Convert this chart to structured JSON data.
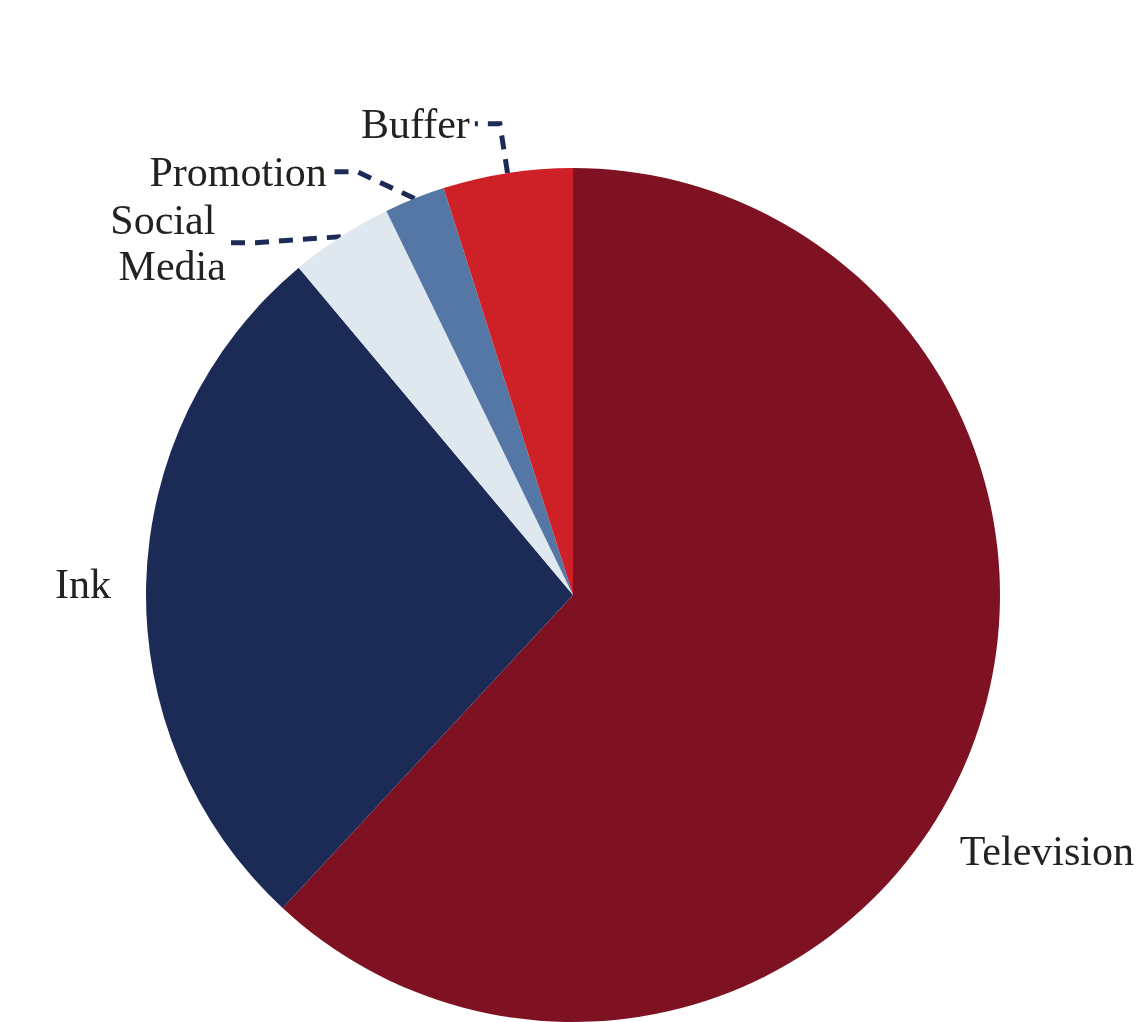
{
  "chart_data": {
    "type": "pie",
    "categories": [
      "Television",
      "Ink",
      "Social Media",
      "Promotion",
      "Buffer"
    ],
    "values": [
      61.9,
      27.0,
      3.9,
      2.3,
      4.9
    ],
    "colors": [
      "#7e1222",
      "#1c2a56",
      "#dfe7ef",
      "#5577a5",
      "#ce2027"
    ],
    "legend": false
  }
}
